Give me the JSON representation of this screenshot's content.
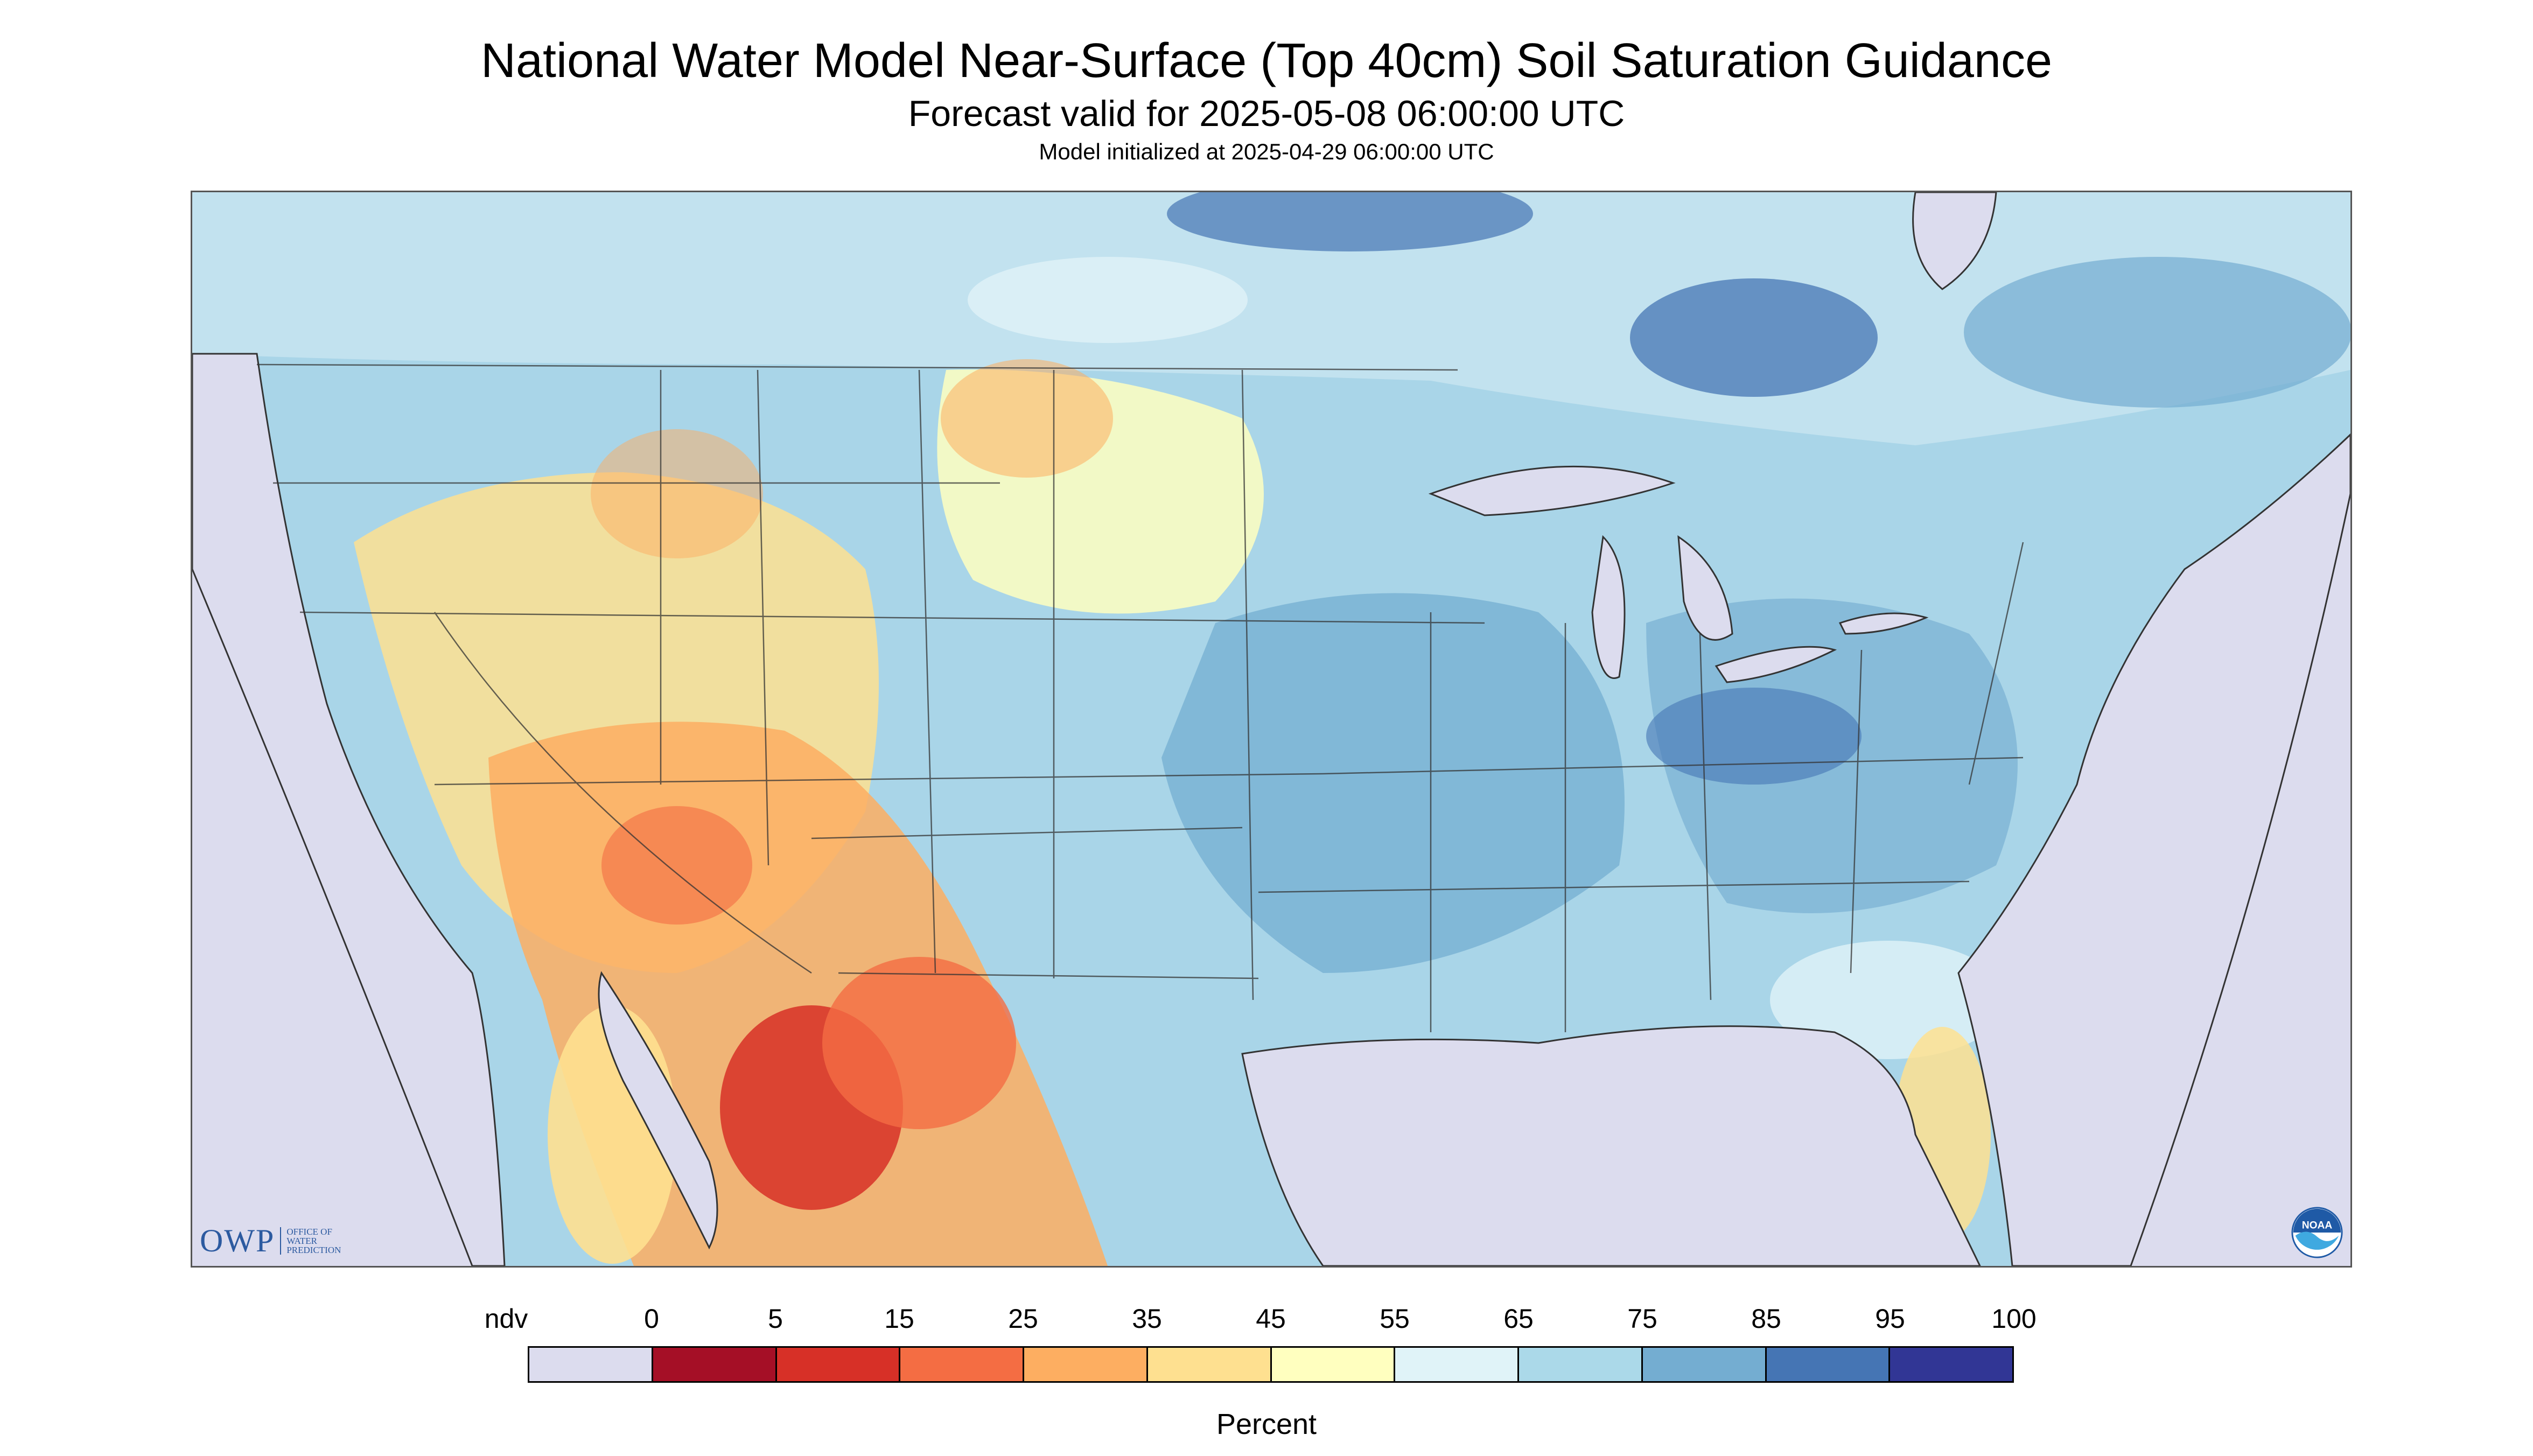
{
  "header": {
    "title": "National Water Model Near-Surface (Top 40cm) Soil Saturation Guidance",
    "forecast_valid": "Forecast valid for 2025-05-08 06:00:00 UTC",
    "model_initialized": "Model initialized at 2025-04-29 06:00:00 UTC"
  },
  "map": {
    "no_data_color": "#dcdcee",
    "water_color": "#dcdcee",
    "base_land_color": "#a9d5e8",
    "boundary_color": "#333333"
  },
  "logos": {
    "owp_big": "OWP",
    "owp_small": "OFFICE OF WATER PREDICTION",
    "noaa": "NOAA"
  },
  "legend": {
    "unit_label": "Percent",
    "tick_labels": [
      "ndv",
      "0",
      "5",
      "15",
      "25",
      "35",
      "45",
      "55",
      "65",
      "75",
      "85",
      "95",
      "100"
    ],
    "colors": [
      "#dcdcee",
      "#a50f26",
      "#d73027",
      "#f46d43",
      "#fdae61",
      "#fee090",
      "#ffffbf",
      "#e0f3f8",
      "#abd9e9",
      "#74add1",
      "#4575b4",
      "#313695"
    ]
  }
}
